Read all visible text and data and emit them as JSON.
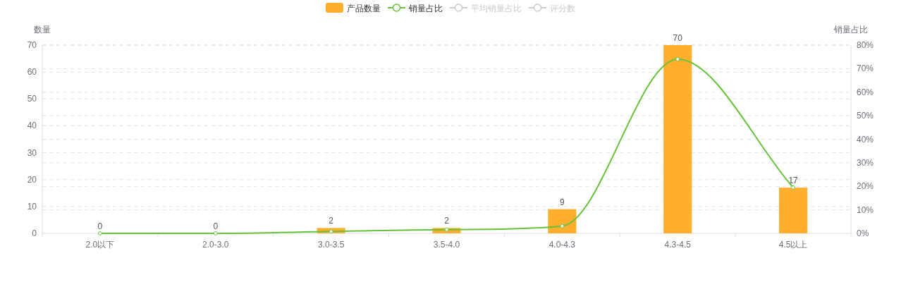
{
  "chart_data": {
    "type": "bar",
    "categories": [
      "2.0以下",
      "2.0-3.0",
      "3.0-3.5",
      "3.5-4.0",
      "4.0-4.3",
      "4.3-4.5",
      "4.5以上"
    ],
    "ylabel": "数量",
    "y2label": "销量占比",
    "ylim": [
      0,
      70
    ],
    "yticks": [
      0,
      10,
      20,
      30,
      40,
      50,
      60,
      70
    ],
    "y2lim": [
      0,
      80
    ],
    "y2ticks": [
      {
        "value": 0,
        "label": "0%"
      },
      {
        "value": 10,
        "label": "10%"
      },
      {
        "value": 20,
        "label": "20%"
      },
      {
        "value": 30,
        "label": "30%"
      },
      {
        "value": 40,
        "label": "40%"
      },
      {
        "value": 50,
        "label": "50%"
      },
      {
        "value": 60,
        "label": "60%"
      },
      {
        "value": 70,
        "label": "70%"
      },
      {
        "value": 80,
        "label": "80%"
      }
    ],
    "grid": "y",
    "legend": "top",
    "marker": "circle",
    "series": [
      {
        "name": "产品数量",
        "color": "#ffae2e",
        "values": [
          0,
          0,
          2,
          2,
          9,
          70,
          17
        ],
        "value_labels": [
          "0",
          "0",
          "2",
          "2",
          "9",
          "70",
          "17"
        ]
      },
      {
        "name": "销量占比",
        "type": "line",
        "axis": "y2",
        "color": "#67c23a",
        "values": [
          0,
          0,
          0.8,
          1.6,
          3.1,
          74,
          19.5
        ]
      },
      {
        "name": "平均销量占比",
        "type": "line",
        "axis": "y2",
        "color": "#cccccc",
        "values": [
          null,
          null,
          null,
          null,
          null,
          null,
          null
        ]
      },
      {
        "name": "评分数",
        "type": "line",
        "color": "#cccccc",
        "values": [
          null,
          null,
          null,
          null,
          null,
          null,
          null
        ]
      }
    ]
  }
}
